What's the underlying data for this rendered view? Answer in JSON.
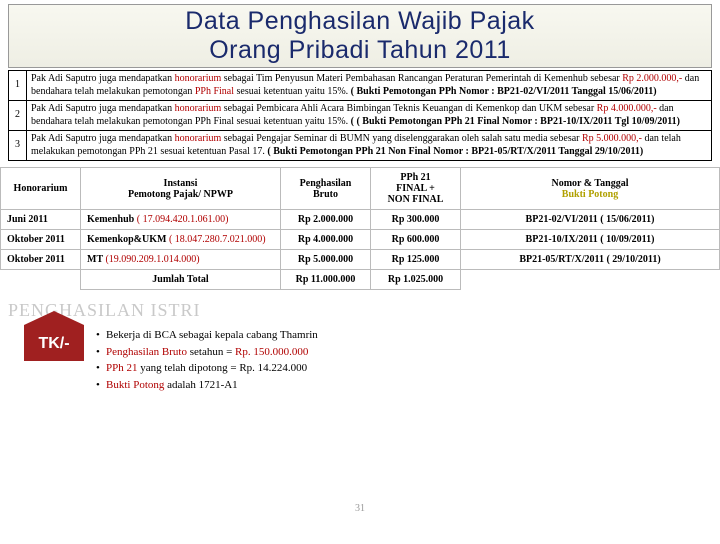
{
  "title": {
    "line1": "Data Penghasilan Wajib Pajak",
    "line2": "Orang Pribadi Tahun 2011"
  },
  "desc_rows": [
    {
      "n": "1",
      "pre": "Pak Adi Saputro juga mendapatkan ",
      "hl": "honorarium",
      "post1": " sebagai Tim Penyusun Materi Pembahasan Rancangan Peraturan Pemerintah di Kemenhub sebesar ",
      "amt": "Rp 2.000.000,-",
      "post2": " dan bendahara telah melakukan pemotongan ",
      "pph": "PPh Final",
      "post3": " sesuai ketentuan yaitu 15%. ",
      "bold": " ( Bukti Pemotongan PPh Nomor : BP21-02/VI/2011 Tanggal 15/06/2011)"
    },
    {
      "n": "2",
      "pre": "Pak Adi Saputro juga mendapatkan ",
      "hl": "honorarium",
      "post1": " sebagai Pembicara Ahli Acara Bimbingan Teknis Keuangan di Kemenkop dan UKM sebesar ",
      "amt": "Rp 4.000.000,-",
      "post2": " dan bendahara telah melakukan pemotongan PPh Final sesuai ketentuan yaitu 15%. ",
      "pph": "",
      "post3": "",
      "bold": "( ( Bukti Pemotongan PPh 21 Final Nomor : BP21-10/IX/2011 Tgl 10/09/2011)"
    },
    {
      "n": "3",
      "pre": "Pak Adi Saputro juga mendapatkan ",
      "hl": "honorarium",
      "post1": " sebagai Pengajar Seminar di BUMN yang diselenggarakan oleh salah satu media  sebesar ",
      "amt": "Rp 5.000.000,-",
      "post2": " dan telah melakukan pemotongan PPh 21 sesuai ketentuan Pasal 17. ",
      "pph": "",
      "post3": "",
      "bold": " ( Bukti Pemotongan PPh 21 Non Final Nomor : BP21-05/RT/X/2011 Tanggal 29/10/2011)"
    }
  ],
  "headers": {
    "c1": "Honorarium",
    "c2a": "Instansi",
    "c2b": "Pemotong Pajak/ NPWP",
    "c3a": "Penghasilan",
    "c3b": "Bruto",
    "c4a": "PPh 21",
    "c4b": "FINAL +",
    "c4c": "NON FINAL",
    "c5a": "Nomor & Tanggal",
    "c5b": "Bukti Potong"
  },
  "rows": [
    {
      "period": "Juni 2011",
      "inst": "Kemenhub ",
      "npwp": "( 17.094.420.1.061.00)",
      "bruto": "Rp 2.000.000",
      "pph": "Rp 300.000",
      "bp": "BP21-02/VI/2011 ( 15/06/2011)"
    },
    {
      "period": "Oktober 2011",
      "inst": "Kemenkop&UKM ",
      "npwp": "( 18.047.280.7.021.000)",
      "bruto": "Rp 4.000.000",
      "pph": "Rp 600.000",
      "bp": "BP21-10/IX/2011 ( 10/09/2011)"
    },
    {
      "period": "Oktober 2011",
      "inst": "MT ",
      "npwp": "(19.090.209.1.014.000)",
      "bruto": "Rp 5.000.000",
      "pph": "Rp 125.000",
      "bp": "BP21-05/RT/X/2011 ( 29/10/2011)"
    }
  ],
  "total": {
    "label": "Jumlah Total",
    "bruto": "Rp 11.000.000",
    "pph": "Rp 1.025.000"
  },
  "section2": "PENGHASILAN ISTRI",
  "tk": "TK/-",
  "istri": {
    "l1": "Bekerja di BCA sebagai kepala cabang Thamrin",
    "l2a": "Penghasilan Bruto",
    "l2b": " setahun = ",
    "l2c": "Rp. 150.000.000",
    "l3a": "PPh 21",
    "l3b": " yang telah dipotong = Rp. 14.224.000",
    "l4a": "Bukti Potong",
    "l4b": " adalah 1721-A1"
  },
  "pagenum": "31"
}
